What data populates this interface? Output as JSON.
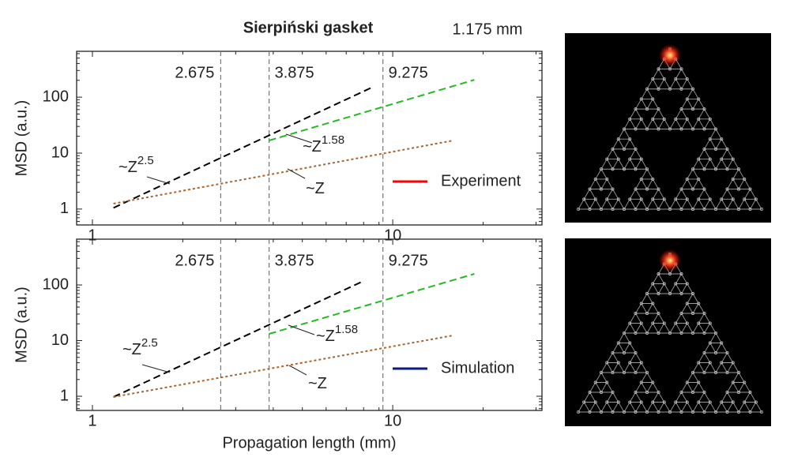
{
  "title": "Sierpiński gasket",
  "image_label": "1.175 mm",
  "chart_data": [
    {
      "type": "line",
      "log_x": true,
      "log_y": true,
      "y_label": "MSD (a.u.)",
      "xlim": [
        0.886,
        31.4
      ],
      "ylim": [
        0.52,
        660
      ],
      "xticks": [
        1,
        10
      ],
      "yticks": [
        1,
        10,
        100
      ],
      "xminorticks": [
        2,
        3,
        4,
        5,
        6,
        7,
        8,
        9,
        20,
        30
      ],
      "yminorticks": [
        0.6,
        0.7,
        0.8,
        0.9,
        2,
        3,
        4,
        5,
        6,
        7,
        8,
        9,
        20,
        30,
        40,
        50,
        60,
        70,
        80,
        90,
        200,
        300,
        400,
        500,
        600
      ],
      "vlines": [
        2.675,
        3.875,
        9.275
      ],
      "series": [
        {
          "color": "#000000",
          "dash": "dashed",
          "x": [
            1.175,
            8.5
          ],
          "values": [
            1.05,
            148
          ]
        },
        {
          "color": "#22bb22",
          "dash": "dashed",
          "x": [
            3.875,
            18.7
          ],
          "values": [
            16.8,
            204
          ]
        },
        {
          "color": "#b0622a",
          "dash": "dotted",
          "x": [
            1.175,
            15.9
          ],
          "values": [
            1.25,
            16.8
          ]
        }
      ],
      "annotations": [
        {
          "text": "~Z",
          "sup": "2.5"
        },
        {
          "text": "~Z",
          "sup": "1.58"
        },
        {
          "text": "~Z"
        }
      ],
      "legend": {
        "label": "Experiment",
        "color": "#ff0000"
      }
    },
    {
      "type": "line",
      "log_x": true,
      "log_y": true,
      "y_label": "MSD (a.u.)",
      "x_label": "Propagation length (mm)",
      "xlim": [
        0.886,
        31.4
      ],
      "ylim": [
        0.556,
        665
      ],
      "xticks": [
        1,
        10
      ],
      "yticks": [
        1,
        10,
        100
      ],
      "xminorticks": [
        2,
        3,
        4,
        5,
        6,
        7,
        8,
        9,
        20,
        30
      ],
      "yminorticks": [
        0.6,
        0.7,
        0.8,
        0.9,
        2,
        3,
        4,
        5,
        6,
        7,
        8,
        9,
        20,
        30,
        40,
        50,
        60,
        70,
        80,
        90,
        200,
        300,
        400,
        500,
        600
      ],
      "vlines": [
        2.675,
        3.875,
        9.275
      ],
      "series": [
        {
          "color": "#000000",
          "dash": "dashed",
          "x": [
            1.175,
            8.0
          ],
          "values": [
            0.97,
            118
          ]
        },
        {
          "color": "#22bb22",
          "dash": "dashed",
          "x": [
            3.875,
            18.7
          ],
          "values": [
            13.2,
            158
          ]
        },
        {
          "color": "#b0622a",
          "dash": "dotted",
          "x": [
            1.175,
            15.9
          ],
          "values": [
            0.97,
            12.4
          ]
        }
      ],
      "annotations": [
        {
          "text": "~Z",
          "sup": "2.5"
        },
        {
          "text": "~Z",
          "sup": "1.58"
        },
        {
          "text": "~Z"
        }
      ],
      "legend": {
        "label": "Simulation",
        "color": "#0a1a8a"
      }
    }
  ]
}
